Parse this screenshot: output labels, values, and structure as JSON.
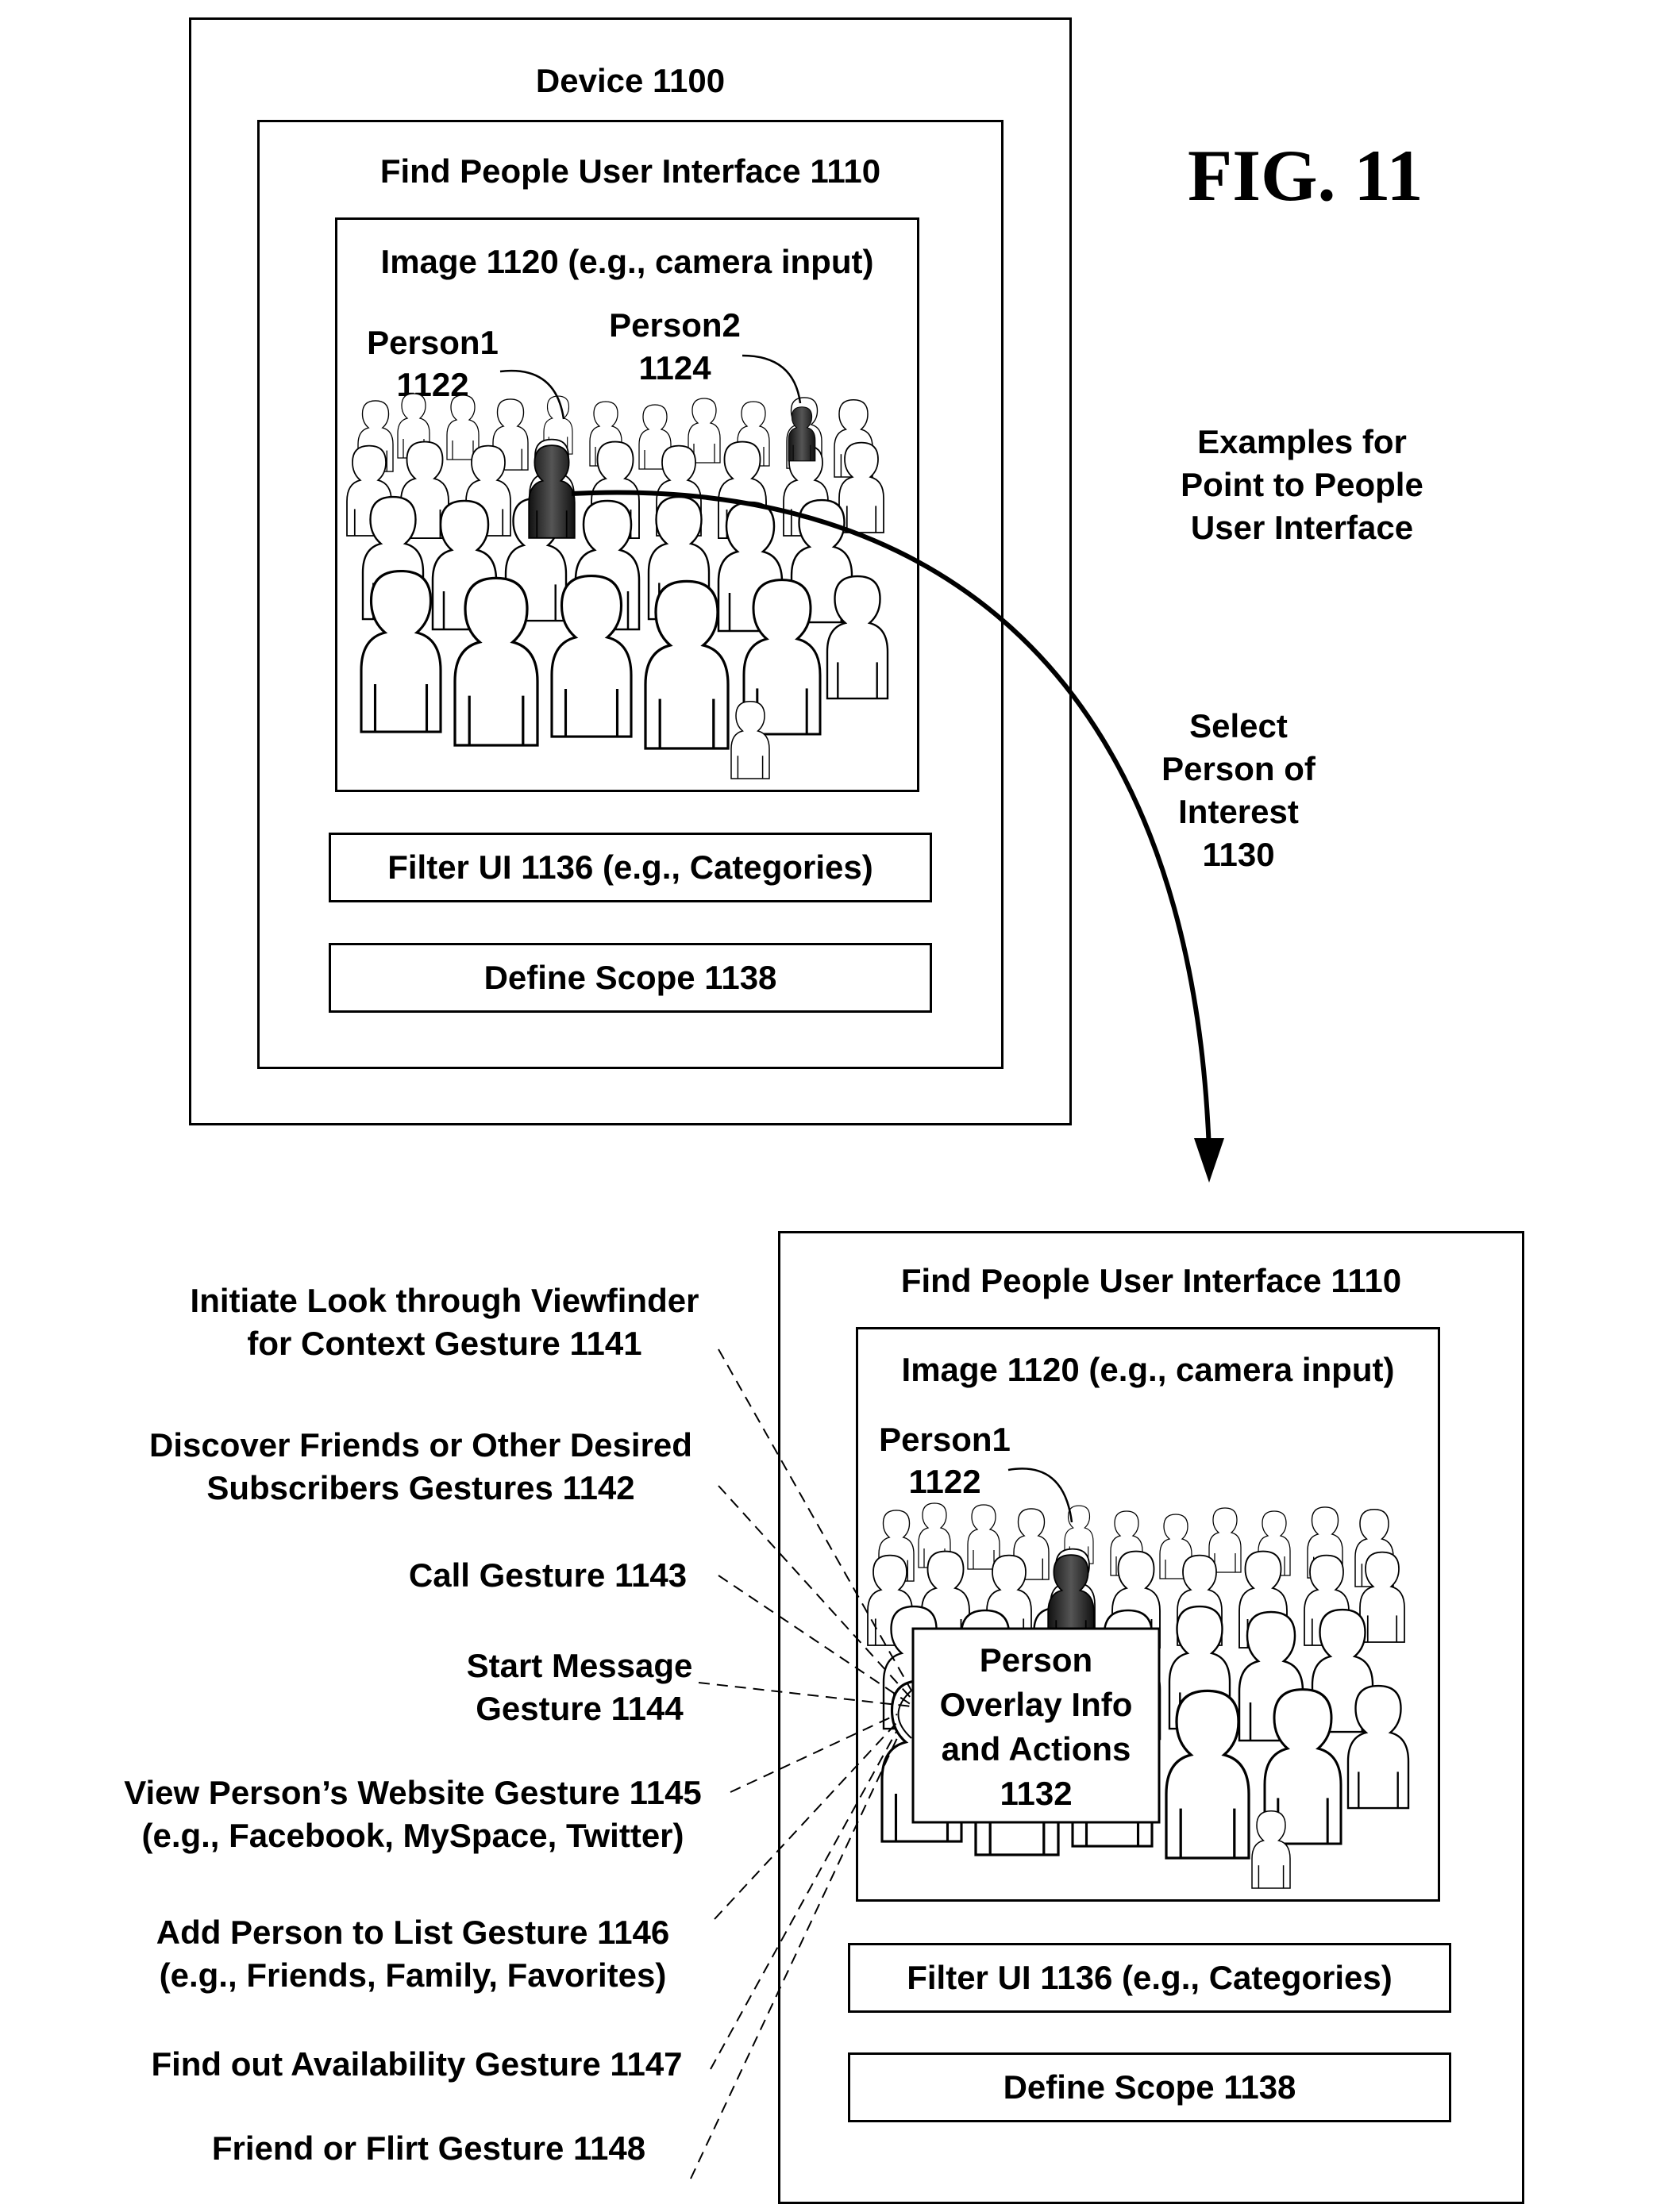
{
  "figure_label": "FIG. 11",
  "top": {
    "device_label": "Device 1100",
    "ui_title": "Find People User Interface 1110",
    "image_label": "Image 1120 (e.g., camera input)",
    "person1_name": "Person1",
    "person1_num": "1122",
    "person2_name": "Person2",
    "person2_num": "1124",
    "filter_button": "Filter UI 1136 (e.g., Categories)",
    "scope_button": "Define Scope 1138"
  },
  "side": {
    "examples_line1": "Examples for",
    "examples_line2": "Point to People",
    "examples_line3": "User Interface",
    "select_line1": "Select",
    "select_line2": "Person of",
    "select_line3": "Interest",
    "select_line4": "1130"
  },
  "bottom": {
    "ui_title": "Find People User Interface 1110",
    "image_label": "Image 1120 (e.g., camera input)",
    "person1_name": "Person1",
    "person1_num": "1122",
    "overlay_line1": "Person",
    "overlay_line2": "Overlay Info",
    "overlay_line3": "and Actions",
    "overlay_line4": "1132",
    "filter_button": "Filter UI 1136 (e.g., Categories)",
    "scope_button": "Define Scope 1138"
  },
  "gestures": [
    {
      "line1": "Initiate Look through Viewfinder",
      "line2": "for Context Gesture 1141"
    },
    {
      "line1": "Discover Friends or Other Desired",
      "line2": "Subscribers Gestures 1142"
    },
    {
      "line1": "Call Gesture 1143",
      "line2": ""
    },
    {
      "line1": "Start Message",
      "line2": "Gesture 1144"
    },
    {
      "line1": "View Person’s Website Gesture 1145",
      "line2": "(e.g., Facebook, MySpace, Twitter)"
    },
    {
      "line1": "Add Person to List Gesture 1146",
      "line2": "(e.g., Friends, Family, Favorites)"
    },
    {
      "line1": "Find out Availability Gesture 1147",
      "line2": ""
    },
    {
      "line1": "Friend or Flirt Gesture 1148",
      "line2": ""
    }
  ],
  "colors": {
    "line": "#000000",
    "highlight": "#222222",
    "background": "#ffffff"
  }
}
